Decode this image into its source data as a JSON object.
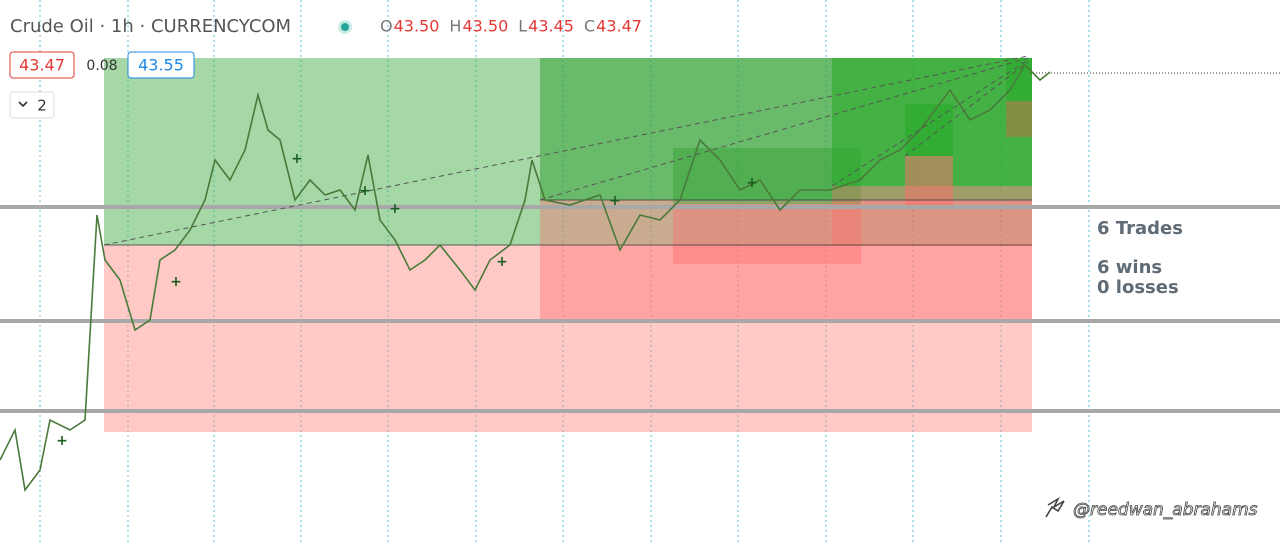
{
  "header": {
    "symbol": "Crude Oil · 1h · CURRENCYCOM",
    "ohlc": [
      {
        "letter": "O",
        "value": "43.50"
      },
      {
        "letter": "H",
        "value": "43.50"
      },
      {
        "letter": "L",
        "value": "43.45"
      },
      {
        "letter": "C",
        "value": "43.47"
      }
    ]
  },
  "quote": {
    "bid": "43.47",
    "spread": "0.08",
    "ask": "43.55"
  },
  "indicators": {
    "count": "2"
  },
  "stats": {
    "trades": "6 Trades",
    "wins": "6 wins",
    "losses": "0 losses"
  },
  "watermark": "@reedwan_abrahams"
}
